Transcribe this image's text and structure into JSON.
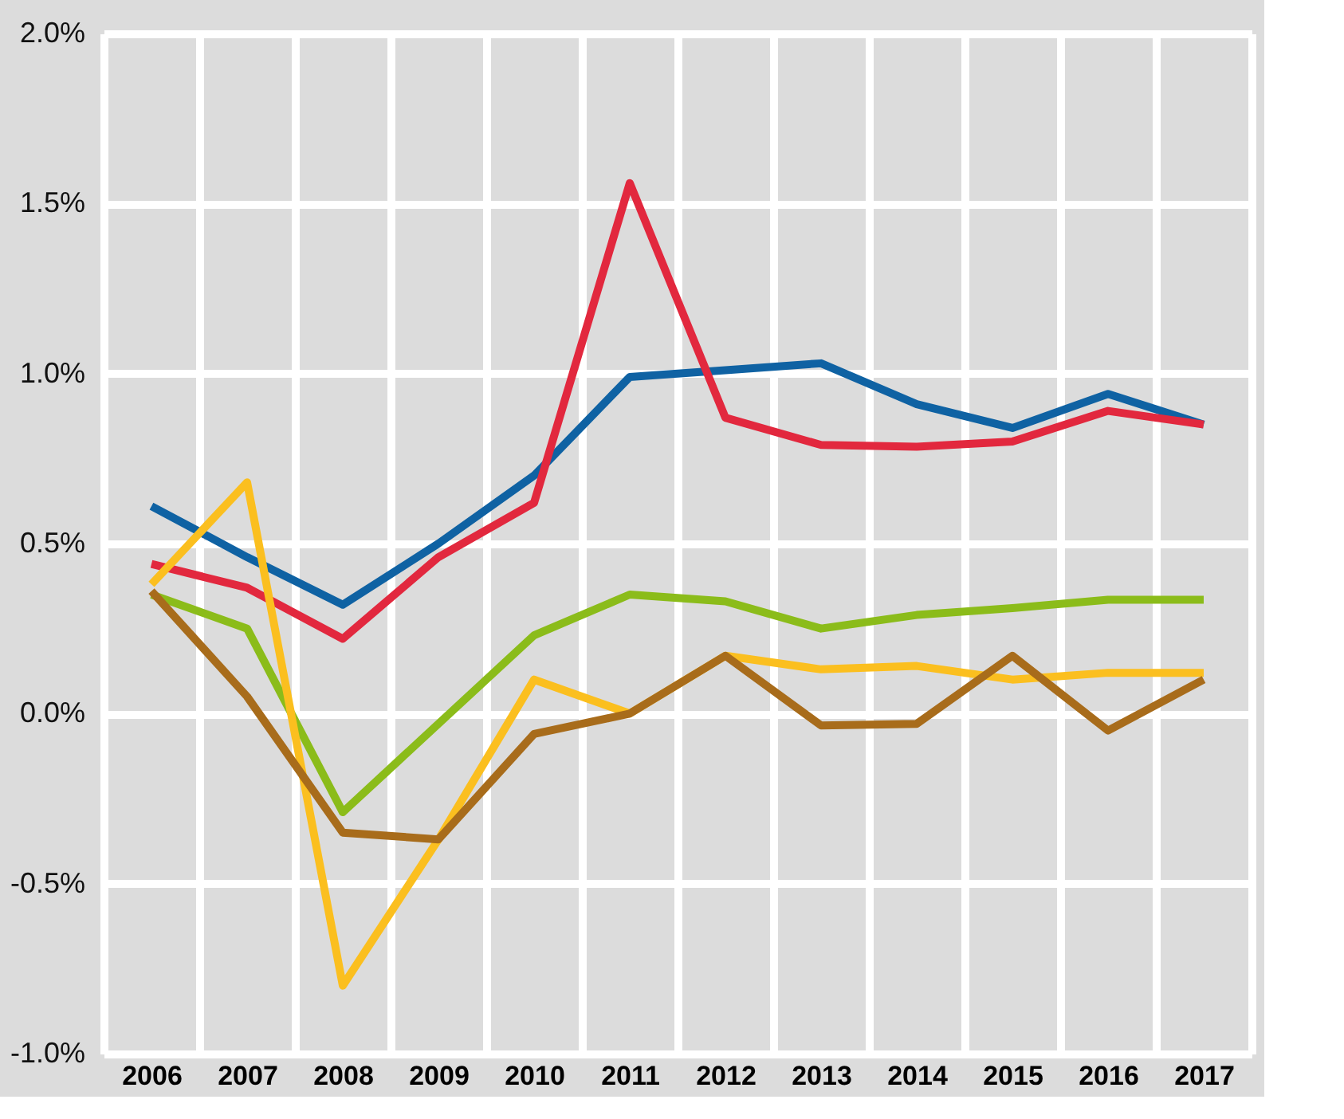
{
  "chart_data": {
    "type": "line",
    "categories": [
      "2006",
      "2007",
      "2008",
      "2009",
      "2010",
      "2011",
      "2012",
      "2013",
      "2014",
      "2015",
      "2016",
      "2017"
    ],
    "series": [
      {
        "color": "#0f62a3",
        "values": [
          0.61,
          0.46,
          0.32,
          0.5,
          0.7,
          0.99,
          1.01,
          1.03,
          0.91,
          0.84,
          0.94,
          0.85
        ]
      },
      {
        "color": "#e2283e",
        "values": [
          0.44,
          0.37,
          0.22,
          0.46,
          0.62,
          1.56,
          0.87,
          0.79,
          0.785,
          0.8,
          0.89,
          0.85
        ]
      },
      {
        "color": "#8bbc1a",
        "values": [
          0.35,
          0.25,
          -0.29,
          -0.03,
          0.23,
          0.35,
          0.33,
          0.25,
          0.29,
          0.31,
          0.335,
          0.335
        ]
      },
      {
        "color": "#fbbf1f",
        "values": [
          0.38,
          0.68,
          -0.8,
          -0.37,
          0.1,
          0.0,
          0.17,
          0.13,
          0.14,
          0.1,
          0.12,
          0.12
        ]
      },
      {
        "color": "#a86c1b",
        "values": [
          0.36,
          0.05,
          -0.35,
          -0.37,
          -0.06,
          0.0,
          0.17,
          -0.035,
          -0.03,
          0.17,
          -0.05,
          0.1
        ]
      }
    ],
    "ylim": [
      -1.0,
      2.0
    ],
    "yticks": [
      {
        "value": -1.0,
        "label": "-1.0%"
      },
      {
        "value": -0.5,
        "label": "-0.5%"
      },
      {
        "value": 0.0,
        "label": "0.0%"
      },
      {
        "value": 0.5,
        "label": "0.5%"
      },
      {
        "value": 1.0,
        "label": "1.0%"
      },
      {
        "value": 1.5,
        "label": "1.5%"
      },
      {
        "value": 2.0,
        "label": "2.0%"
      }
    ],
    "grid": true,
    "legend": false,
    "line_style": "solid",
    "marker": "none"
  }
}
